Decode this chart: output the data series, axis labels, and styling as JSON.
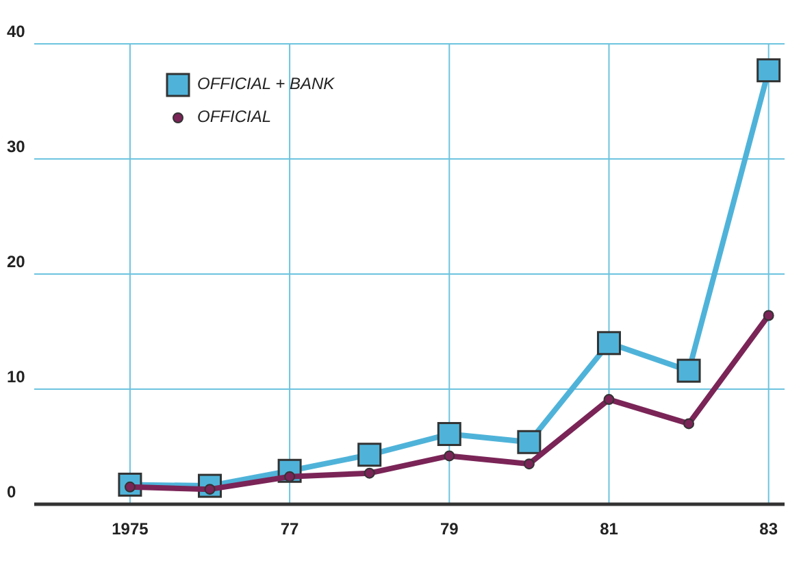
{
  "chart_data": {
    "type": "line",
    "x": [
      1975,
      1976,
      1977,
      1978,
      1979,
      1980,
      1981,
      1982,
      1983
    ],
    "series": [
      {
        "name": "OFFICIAL + BANK",
        "color": "#4fb3d9",
        "marker": "square",
        "values": [
          1.7,
          1.6,
          2.9,
          4.3,
          6.1,
          5.4,
          14,
          11.6,
          37.7
        ]
      },
      {
        "name": "OFFICIAL",
        "color": "#7a2457",
        "marker": "circle",
        "values": [
          1.5,
          1.3,
          2.4,
          2.7,
          4.2,
          3.5,
          9.1,
          7.0,
          16.4
        ]
      }
    ],
    "xlim": [
      1973.8,
      1983.2
    ],
    "xticks": [
      1975,
      {
        "value": 1977,
        "label": "77"
      },
      {
        "value": 1979,
        "label": "79"
      },
      {
        "value": 1981,
        "label": "81"
      },
      {
        "value": 1983,
        "label": "83"
      }
    ],
    "ylim": [
      0,
      40
    ],
    "yticks": [
      0,
      10,
      20,
      30,
      40
    ],
    "grid": true,
    "legend": "top left",
    "line_style": "solid"
  }
}
